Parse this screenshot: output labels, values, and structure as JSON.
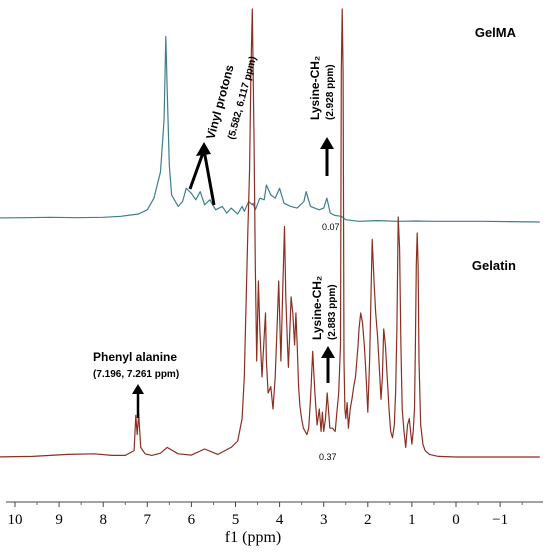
{
  "chart_data": {
    "type": "line",
    "xlabel": "f1 (ppm)",
    "x_reversed": true,
    "xlim": [
      10.5,
      -1.9
    ],
    "x_ticks": [
      "10",
      "9",
      "8",
      "7",
      "6",
      "5",
      "4",
      "3",
      "2",
      "1",
      "0",
      "−1"
    ],
    "series": [
      {
        "name": "GelMA",
        "color": "#3d7f8a",
        "x": [
          10.5,
          9.8,
          9.2,
          8.6,
          8.0,
          7.6,
          7.2,
          7.0,
          6.85,
          6.7,
          6.62,
          6.58,
          6.55,
          6.5,
          6.45,
          6.3,
          6.2,
          6.117,
          6.0,
          5.9,
          5.8,
          5.7,
          5.582,
          5.45,
          5.3,
          5.2,
          5.1,
          4.95,
          4.85,
          4.8,
          4.7,
          4.62,
          4.6,
          4.55,
          4.45,
          4.35,
          4.3,
          4.2,
          4.1,
          4.0,
          3.9,
          3.75,
          3.6,
          3.45,
          3.4,
          3.3,
          3.1,
          3.0,
          2.928,
          2.85,
          2.75,
          2.6,
          2.5,
          2.2,
          1.8,
          1.3,
          0.9,
          0.5,
          0.0,
          -0.6,
          -1.2,
          -1.9
        ],
        "y": [
          0.0,
          0.01,
          0.02,
          0.01,
          0.02,
          0.05,
          0.12,
          0.25,
          0.6,
          1.4,
          3.0,
          5.5,
          4.0,
          1.6,
          0.7,
          0.35,
          0.5,
          0.9,
          0.75,
          0.55,
          0.8,
          0.4,
          0.55,
          0.25,
          0.35,
          0.15,
          0.3,
          0.12,
          0.35,
          0.2,
          0.5,
          0.4,
          0.45,
          0.25,
          0.6,
          0.55,
          1.0,
          0.7,
          0.6,
          0.9,
          0.45,
          0.35,
          0.3,
          0.5,
          0.8,
          0.35,
          0.25,
          0.3,
          0.6,
          0.15,
          0.08,
          0.05,
          -0.05,
          -0.1,
          -0.08,
          -0.1,
          -0.09,
          -0.1,
          -0.1,
          -0.1,
          -0.11,
          -0.12
        ]
      },
      {
        "name": "Gelatin",
        "color": "#8b2f22",
        "x": [
          10.5,
          9.6,
          8.8,
          8.2,
          7.8,
          7.5,
          7.3,
          7.261,
          7.23,
          7.196,
          7.15,
          7.05,
          6.9,
          6.7,
          6.55,
          6.3,
          6.0,
          5.7,
          5.4,
          5.1,
          4.95,
          4.85,
          4.8,
          4.72,
          4.68,
          4.65,
          4.62,
          4.58,
          4.55,
          4.52,
          4.48,
          4.45,
          4.4,
          4.36,
          4.32,
          4.3,
          4.26,
          4.2,
          4.15,
          4.1,
          4.06,
          4.02,
          3.97,
          3.93,
          3.89,
          3.86,
          3.82,
          3.8,
          3.78,
          3.74,
          3.7,
          3.66,
          3.63,
          3.6,
          3.57,
          3.54,
          3.5,
          3.46,
          3.42,
          3.38,
          3.34,
          3.3,
          3.25,
          3.2,
          3.15,
          3.1,
          3.06,
          3.03,
          3.0,
          2.96,
          2.92,
          2.883,
          2.86,
          2.8,
          2.74,
          2.7,
          2.66,
          2.62,
          2.6,
          2.58,
          2.56,
          2.54,
          2.52,
          2.5,
          2.47,
          2.44,
          2.4,
          2.36,
          2.32,
          2.28,
          2.25,
          2.22,
          2.2,
          2.16,
          2.12,
          2.08,
          2.05,
          2.02,
          2.0,
          1.96,
          1.92,
          1.9,
          1.86,
          1.82,
          1.78,
          1.74,
          1.7,
          1.67,
          1.64,
          1.6,
          1.56,
          1.52,
          1.48,
          1.44,
          1.4,
          1.37,
          1.34,
          1.31,
          1.28,
          1.25,
          1.22,
          1.18,
          1.14,
          1.1,
          1.06,
          1.03,
          1.0,
          0.97,
          0.94,
          0.92,
          0.9,
          0.88,
          0.86,
          0.84,
          0.8,
          0.75,
          0.7,
          0.6,
          0.4,
          0.0,
          -0.5,
          -1.0,
          -1.5,
          -1.9
        ],
        "y": [
          0.0,
          0.02,
          0.08,
          0.1,
          0.05,
          0.05,
          0.2,
          1.3,
          0.7,
          1.35,
          0.3,
          0.1,
          0.05,
          0.12,
          0.3,
          0.1,
          0.06,
          0.25,
          0.08,
          0.3,
          0.5,
          1.2,
          2.5,
          7.0,
          9.0,
          12.0,
          14.0,
          10.0,
          6.0,
          3.0,
          5.5,
          4.0,
          2.5,
          3.5,
          4.5,
          3.0,
          2.0,
          2.2,
          1.5,
          2.5,
          4.0,
          5.5,
          3.0,
          5.2,
          7.2,
          5.0,
          3.5,
          2.8,
          3.5,
          5.0,
          4.5,
          3.5,
          4.5,
          3.5,
          2.2,
          1.6,
          1.2,
          0.9,
          0.8,
          0.7,
          0.9,
          1.8,
          3.3,
          2.0,
          1.0,
          1.5,
          0.8,
          1.4,
          0.8,
          1.2,
          2.0,
          1.3,
          0.9,
          0.9,
          0.8,
          1.4,
          2.0,
          3.5,
          12.0,
          14.0,
          12.0,
          3.0,
          1.5,
          1.2,
          1.7,
          0.9,
          1.5,
          1.8,
          2.2,
          2.5,
          3.0,
          3.5,
          4.0,
          4.5,
          4.2,
          3.5,
          2.8,
          2.0,
          1.4,
          3.0,
          5.5,
          6.8,
          5.5,
          4.5,
          3.8,
          2.8,
          1.8,
          2.5,
          4.0,
          3.5,
          2.5,
          1.5,
          0.8,
          0.6,
          1.0,
          2.0,
          4.0,
          7.5,
          6.5,
          3.5,
          1.5,
          0.8,
          0.3,
          1.0,
          1.2,
          0.8,
          0.4,
          0.8,
          1.5,
          3.5,
          6.0,
          7.0,
          6.0,
          3.0,
          1.0,
          0.4,
          0.2,
          0.08,
          0.02,
          0.0,
          0.0,
          0.0,
          0.0,
          0.0
        ]
      }
    ],
    "annotations": [
      {
        "label": "Vinyl protons",
        "sub": "(5.582, 6.117 ppm)"
      },
      {
        "label": "Lysine-CH₂",
        "sub": "(2.928 ppm)"
      },
      {
        "label": "Lysine-CH₂",
        "sub": "(2.883 ppm)"
      },
      {
        "label": "Phenyl alanine",
        "sub": "(7.196, 7.261 ppm)"
      }
    ],
    "integrals": [
      "0.07",
      "0.37"
    ]
  }
}
